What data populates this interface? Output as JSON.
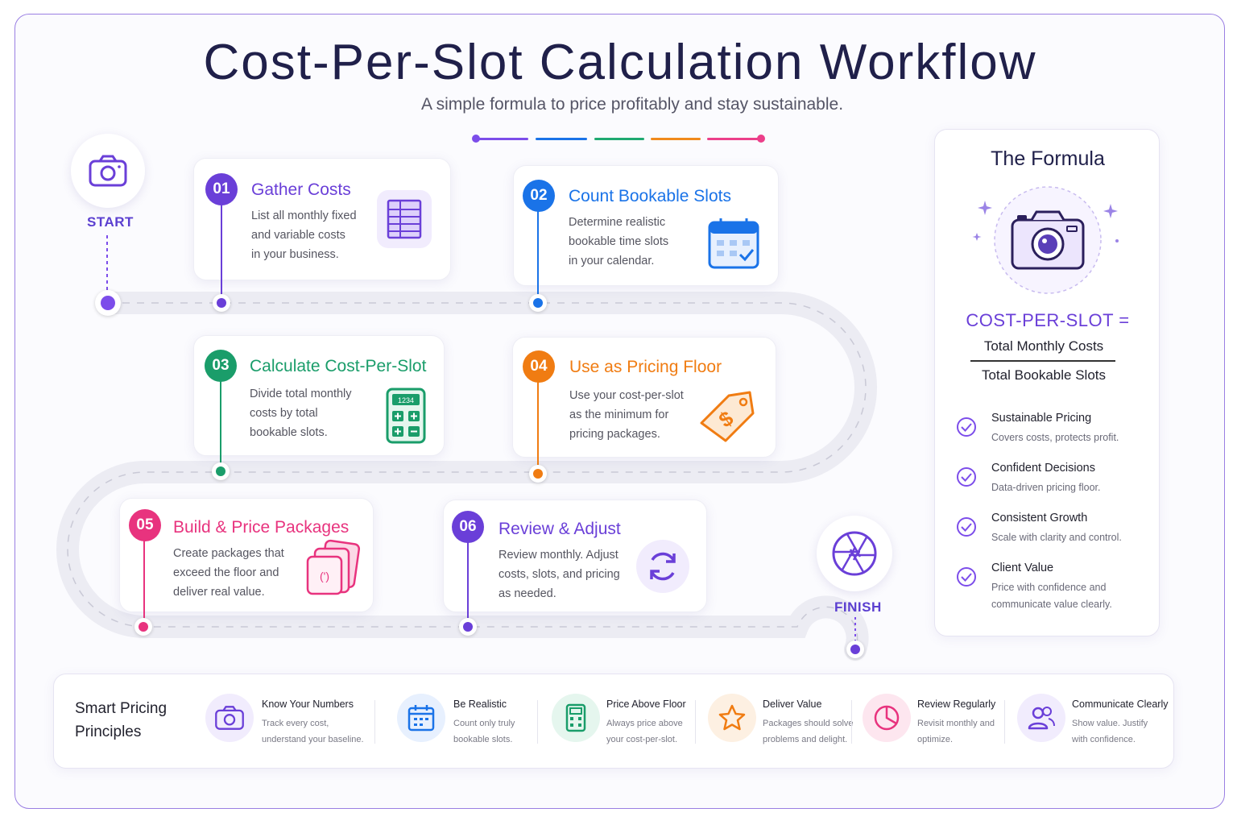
{
  "header": {
    "title": "Cost-Per-Slot Calculation Workflow",
    "subtitle": "A simple formula to price profitably and stay sustainable.",
    "bar_colors": [
      "#7c4dea",
      "#1a73e8",
      "#1fa971",
      "#f08a1c",
      "#ec3f8a"
    ]
  },
  "start": {
    "label": "START",
    "icon": "camera-icon"
  },
  "finish": {
    "label": "FINISH",
    "icon": "aperture-icon"
  },
  "steps": [
    {
      "num": "01",
      "title": "Gather Costs",
      "desc": [
        "List all monthly fixed",
        "and variable costs",
        "in your business."
      ],
      "color": "#6a3fd8",
      "icon": "spreadsheet-icon"
    },
    {
      "num": "02",
      "title": "Count Bookable Slots",
      "desc": [
        "Determine realistic",
        "bookable time slots",
        "in your calendar."
      ],
      "color": "#1a73e8",
      "icon": "calendar-check-icon"
    },
    {
      "num": "03",
      "title": "Calculate Cost-Per-Slot",
      "desc": [
        "Divide total monthly",
        "costs by total",
        "bookable slots."
      ],
      "color": "#1a9d6a",
      "icon": "calculator-icon",
      "icon_text": "1234"
    },
    {
      "num": "04",
      "title": "Use as Pricing Floor",
      "desc": [
        "Use your cost-per-slot",
        "as the minimum for",
        "pricing packages."
      ],
      "color": "#f07c12",
      "icon": "price-tag-icon"
    },
    {
      "num": "05",
      "title": "Build & Price Packages",
      "desc": [
        "Create packages that",
        "exceed the floor and",
        "deliver real value."
      ],
      "color": "#e8337e",
      "icon": "package-stack-icon"
    },
    {
      "num": "06",
      "title": "Review & Adjust",
      "desc": [
        "Review monthly. Adjust",
        "costs, slots, and pricing",
        "as needed."
      ],
      "color": "#6a3fd8",
      "icon": "refresh-icon"
    }
  ],
  "formula": {
    "title": "The Formula",
    "icon": "camera-icon",
    "label": "COST-PER-SLOT =",
    "numerator": "Total Monthly Costs",
    "denominator": "Total Bookable Slots",
    "benefits": [
      {
        "title": "Sustainable Pricing",
        "desc": "Covers costs, protects profit."
      },
      {
        "title": "Confident Decisions",
        "desc": "Data-driven pricing floor."
      },
      {
        "title": "Consistent Growth",
        "desc": "Scale with clarity and control."
      },
      {
        "title": "Client Value",
        "desc": "Price with confidence and communicate value clearly."
      }
    ]
  },
  "principles": {
    "title": "Smart Pricing Principles",
    "items": [
      {
        "title": "Know Your Numbers",
        "desc": "Track every cost, understand your baseline.",
        "icon": "camera-icon",
        "color": "#6a3fd8"
      },
      {
        "title": "Be Realistic",
        "desc": "Count only truly bookable slots.",
        "icon": "calendar-icon",
        "color": "#1a73e8"
      },
      {
        "title": "Price Above Floor",
        "desc": "Always price above your cost-per-slot.",
        "icon": "calculator-icon",
        "color": "#1a9d6a"
      },
      {
        "title": "Deliver Value",
        "desc": "Packages should solve problems and delight.",
        "icon": "star-icon",
        "color": "#f07c12"
      },
      {
        "title": "Review Regularly",
        "desc": "Revisit monthly and optimize.",
        "icon": "pie-chart-icon",
        "color": "#e8337e"
      },
      {
        "title": "Communicate Clearly",
        "desc": "Show value. Justify with confidence.",
        "icon": "users-icon",
        "color": "#6a3fd8"
      }
    ]
  }
}
